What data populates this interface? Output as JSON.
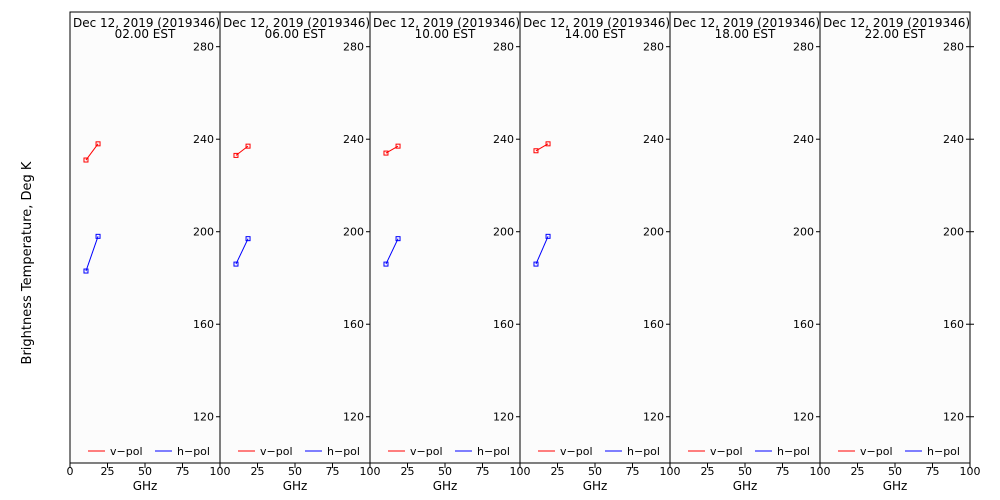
{
  "chart_data": {
    "type": "line",
    "ylabel": "Brightness Temperature, Deg K",
    "xlabel": "GHz",
    "xlim": [
      0,
      100
    ],
    "ylim": [
      100,
      295
    ],
    "x_ticks": [
      0,
      25,
      50,
      75,
      100
    ],
    "x_tick_labels": [
      "0",
      "25",
      "50",
      "75",
      "100"
    ],
    "y_ticks": [
      120,
      160,
      200,
      240,
      280
    ],
    "y_tick_labels": [
      "120",
      "160",
      "200",
      "240",
      "280"
    ],
    "grid": false,
    "legend": {
      "placement": "bottom",
      "entries": [
        "v−pol",
        "h−pol"
      ]
    },
    "colors": {
      "v-pol": "#ff0000",
      "h-pol": "#0000ff"
    },
    "panels": [
      {
        "title_line1": "Dec 12, 2019 (2019346)",
        "title_line2": "02.00 EST",
        "series": [
          {
            "name": "v−pol",
            "x": [
              10.65,
              18.7
            ],
            "y": [
              231,
              238
            ]
          },
          {
            "name": "h−pol",
            "x": [
              10.65,
              18.7
            ],
            "y": [
              183,
              198
            ]
          }
        ]
      },
      {
        "title_line1": "Dec 12, 2019 (2019346)",
        "title_line2": "06.00 EST",
        "series": [
          {
            "name": "v−pol",
            "x": [
              10.65,
              18.7
            ],
            "y": [
              233,
              237
            ]
          },
          {
            "name": "h−pol",
            "x": [
              10.65,
              18.7
            ],
            "y": [
              186,
              197
            ]
          }
        ]
      },
      {
        "title_line1": "Dec 12, 2019 (2019346)",
        "title_line2": "10.00 EST",
        "series": [
          {
            "name": "v−pol",
            "x": [
              10.65,
              18.7
            ],
            "y": [
              234,
              237
            ]
          },
          {
            "name": "h−pol",
            "x": [
              10.65,
              18.7
            ],
            "y": [
              186,
              197
            ]
          }
        ]
      },
      {
        "title_line1": "Dec 12, 2019 (2019346)",
        "title_line2": "14.00 EST",
        "series": [
          {
            "name": "v−pol",
            "x": [
              10.65,
              18.7
            ],
            "y": [
              235,
              238
            ]
          },
          {
            "name": "h−pol",
            "x": [
              10.65,
              18.7
            ],
            "y": [
              186,
              198
            ]
          }
        ]
      },
      {
        "title_line1": "Dec 12, 2019 (2019346)",
        "title_line2": "18.00 EST",
        "series": [
          {
            "name": "v−pol",
            "x": [],
            "y": []
          },
          {
            "name": "h−pol",
            "x": [],
            "y": []
          }
        ]
      },
      {
        "title_line1": "Dec 12, 2019 (2019346)",
        "title_line2": "22.00 EST",
        "series": [
          {
            "name": "v−pol",
            "x": [],
            "y": []
          },
          {
            "name": "h−pol",
            "x": [],
            "y": []
          }
        ]
      }
    ]
  }
}
